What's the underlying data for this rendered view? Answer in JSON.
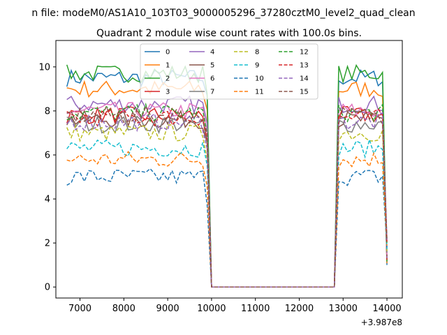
{
  "figure": {
    "suptitle": "n file: modeM0/AS1A10_103T03_9000005296_37280cztM0_level2_quad_clean",
    "title": "Quadrant 2 module wise count rates with 100.0s bins.",
    "x_offset_label": "+3.987e8"
  },
  "chart_data": {
    "type": "line",
    "title": "Quadrant 2 module wise count rates with 100.0s bins.",
    "xlabel": "",
    "ylabel": "",
    "x_offset": 398700000,
    "xlim": [
      6450,
      14350
    ],
    "ylim": [
      -0.5,
      11.2
    ],
    "xticks": [
      7000,
      8000,
      9000,
      10000,
      11000,
      12000,
      13000,
      14000
    ],
    "yticks": [
      0,
      2,
      4,
      6,
      8,
      10
    ],
    "grid": false,
    "legend": {
      "position": "top-center",
      "columns": 4
    },
    "segments": [
      {
        "x_start": 6700,
        "x_end": 9800,
        "step": 100
      },
      {
        "x_start": 12800,
        "x_end": 14000,
        "step": 100
      }
    ],
    "gap_x": [
      9900,
      10000,
      12800
    ],
    "series": [
      {
        "name": "0",
        "color": "#1f77b4",
        "dash": "solid",
        "level": 9.5
      },
      {
        "name": "1",
        "color": "#ff7f0e",
        "dash": "solid",
        "level": 9.0
      },
      {
        "name": "2",
        "color": "#2ca02c",
        "dash": "solid",
        "level": 9.7
      },
      {
        "name": "3",
        "color": "#d62728",
        "dash": "solid",
        "level": 7.8
      },
      {
        "name": "4",
        "color": "#9467bd",
        "dash": "solid",
        "level": 8.3
      },
      {
        "name": "5",
        "color": "#8c564b",
        "dash": "solid",
        "level": 7.6
      },
      {
        "name": "6",
        "color": "#e377c2",
        "dash": "solid",
        "level": 8.0
      },
      {
        "name": "7",
        "color": "#7f7f7f",
        "dash": "solid",
        "level": 7.4
      },
      {
        "name": "8",
        "color": "#bcbd22",
        "dash": "dashed",
        "level": 7.0
      },
      {
        "name": "9",
        "color": "#17becf",
        "dash": "dashed",
        "level": 6.3
      },
      {
        "name": "10",
        "color": "#1f77b4",
        "dash": "dashed",
        "level": 5.0
      },
      {
        "name": "11",
        "color": "#ff7f0e",
        "dash": "dashed",
        "level": 5.8
      },
      {
        "name": "12",
        "color": "#2ca02c",
        "dash": "dashed",
        "level": 7.9
      },
      {
        "name": "13",
        "color": "#d62728",
        "dash": "dashed",
        "level": 7.7
      },
      {
        "name": "14",
        "color": "#9467bd",
        "dash": "dashed",
        "level": 7.5
      },
      {
        "name": "15",
        "color": "#8c564b",
        "dash": "dashed",
        "level": 7.8
      }
    ]
  }
}
